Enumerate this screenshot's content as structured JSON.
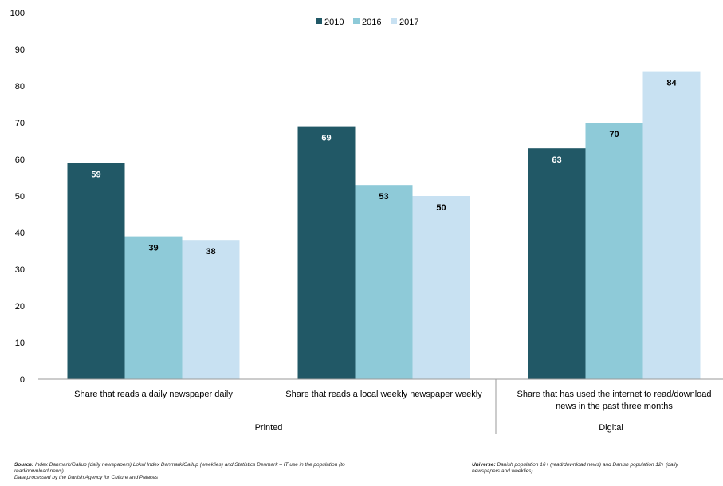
{
  "chart_data": {
    "type": "bar",
    "title": "",
    "xlabel": "",
    "ylabel": "",
    "ylim": [
      0,
      100
    ],
    "yticks": [
      0,
      10,
      20,
      30,
      40,
      50,
      60,
      70,
      80,
      90,
      100
    ],
    "grid": false,
    "legend_position": "top-center",
    "categories": [
      [
        "Share that reads a daily newspaper daily"
      ],
      [
        "Share that reads a local weekly newspaper weekly"
      ],
      [
        "Share that has used the internet to read/download",
        "news in the past three months"
      ]
    ],
    "groups": [
      {
        "label": "Printed",
        "categories": [
          0,
          1
        ]
      },
      {
        "label": "Digital",
        "categories": [
          2
        ]
      }
    ],
    "series": [
      {
        "name": "2010",
        "color": "#215866",
        "values": [
          59,
          69,
          63
        ]
      },
      {
        "name": "2016",
        "color": "#8ecad8",
        "values": [
          39,
          53,
          70
        ]
      },
      {
        "name": "2017",
        "color": "#c8e1f2",
        "values": [
          38,
          50,
          84
        ]
      }
    ]
  },
  "notes": {
    "source_label": "Source:",
    "source_text": "Index Danmark/Gallup (daily newspapers) Lokal Index Danmark/Gallup (weeklies) and Statistics Denmark – IT use in the population (to read/download news)",
    "source_line2": "Data processed by the Danish Agency for Culture and Palaces",
    "universe_label": "Universe:",
    "universe_text": "Danish population 16+ (read/download news) and Danish population 12+ (daily newspapers and weeklies)"
  }
}
